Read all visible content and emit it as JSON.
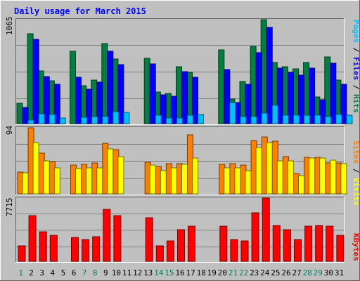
{
  "chart_data": {
    "type": "bar",
    "title": "Daily usage for March 2015",
    "categories": [
      "1",
      "2",
      "3",
      "4",
      "5",
      "6",
      "7",
      "8",
      "9",
      "10",
      "11",
      "12",
      "13",
      "14",
      "15",
      "16",
      "17",
      "18",
      "19",
      "20",
      "21",
      "22",
      "23",
      "24",
      "25",
      "26",
      "27",
      "28",
      "29",
      "30",
      "31"
    ],
    "weekend_days": [
      1,
      7,
      8,
      14,
      15,
      21,
      22,
      28,
      29
    ],
    "panels": [
      {
        "id": "hits-files-pages",
        "max_label": "1065",
        "ymax": 1065,
        "series": [
          {
            "name": "Hits",
            "color": "#008040",
            "values": [
              206,
              920,
              537,
              441,
              0,
              744,
              385,
              449,
              823,
              663,
              0,
              0,
              666,
              325,
              310,
              582,
              523,
              0,
              0,
              756,
              254,
              429,
              788,
              1065,
              623,
              580,
              560,
              625,
              274,
              683,
              447
            ]
          },
          {
            "name": "Files",
            "color": "#0000ff",
            "values": [
              169,
              862,
              480,
              404,
              0,
              474,
              355,
              423,
              740,
              605,
              0,
              0,
              610,
              295,
              283,
              530,
              478,
              0,
              0,
              555,
              216,
              400,
              728,
              985,
              565,
              528,
              500,
              569,
              246,
              620,
              404
            ]
          },
          {
            "name": "Pages",
            "color": "#00c0ff",
            "values": [
              37,
              102,
              93,
              56,
              0,
              65,
              74,
              74,
              121,
              112,
              0,
              0,
              83,
              56,
              56,
              83,
              93,
              0,
              0,
              214,
              74,
              74,
              111,
              186,
              83,
              83,
              83,
              83,
              74,
              93,
              84
            ]
          }
        ]
      },
      {
        "id": "visits-sites",
        "max_label": "94",
        "ymax": 94,
        "series": [
          {
            "name": "Visits",
            "color": "#ff8000",
            "values": [
              31,
              94,
              58,
              46,
              0,
              41,
              42,
              44,
              72,
              63,
              0,
              0,
              45,
              39,
              43,
              43,
              84,
              0,
              0,
              42,
              43,
              41,
              76,
              81,
              75,
              53,
              29,
              52,
              52,
              44,
              44
            ]
          },
          {
            "name": "Sites",
            "color": "#ffff00",
            "values": [
              30,
              73,
              47,
              37,
              0,
              36,
              37,
              37,
              64,
              53,
              0,
              0,
              41,
              33,
              37,
              42,
              51,
              0,
              0,
              37,
              37,
              33,
              66,
              73,
              47,
              47,
              26,
              51,
              51,
              48,
              43
            ]
          }
        ]
      },
      {
        "id": "kbytes",
        "max_label": "7715",
        "ymax": 7715,
        "series": [
          {
            "name": "KBytes",
            "color": "#ff0000",
            "values": [
              1861,
              5540,
              3636,
              3186,
              0,
              2924,
              2669,
              2981,
              6360,
              5540,
              0,
              0,
              5312,
              1850,
              2504,
              3847,
              4306,
              0,
              0,
              4306,
              2669,
              2487,
              5886,
              7715,
              4361,
              3882,
              2631,
              4306,
              4361,
              4306,
              3214
            ]
          }
        ]
      }
    ],
    "colors": {
      "background": "#c0c0c0",
      "grid": "#808080",
      "title": "#0000ff",
      "weekday_label": "#000000",
      "weekend_label": "#00805c"
    }
  }
}
